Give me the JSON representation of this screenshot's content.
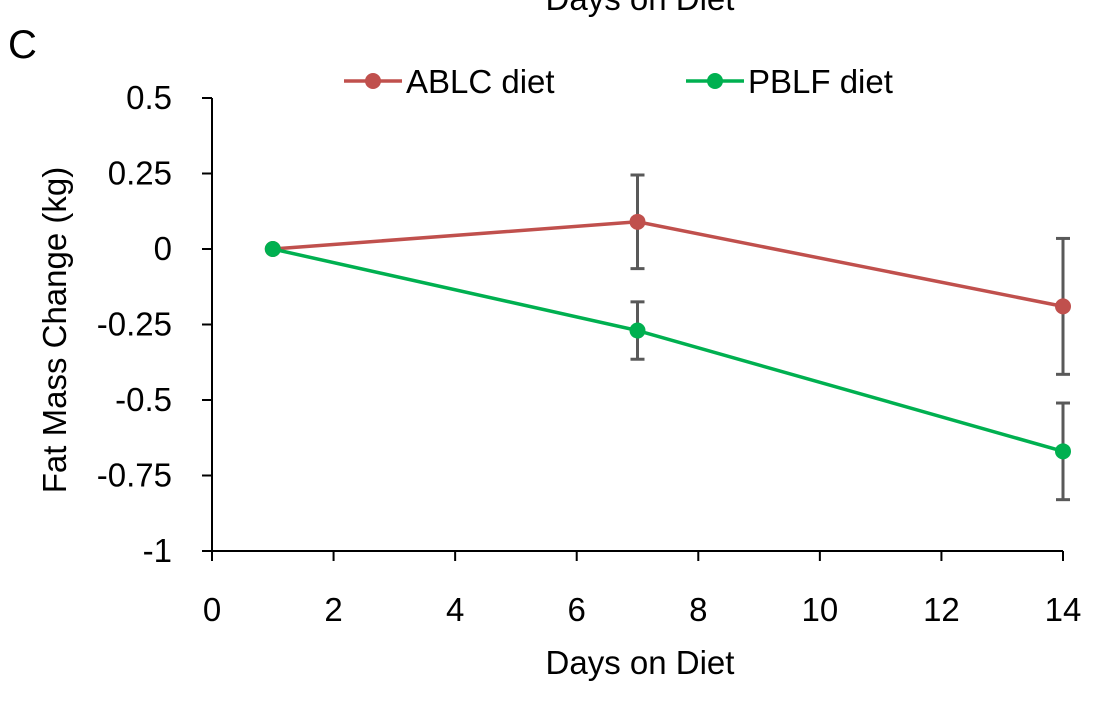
{
  "panel_label": "C",
  "top_cropped_text": "Days on Diet",
  "chart_data": {
    "type": "line",
    "xlabel": "Days on Diet",
    "ylabel": "Fat Mass Change (kg)",
    "xlim": [
      0,
      14
    ],
    "ylim": [
      -1,
      0.5
    ],
    "x_ticks": [
      0,
      2,
      4,
      6,
      8,
      10,
      12,
      14
    ],
    "y_ticks": [
      0.5,
      0.25,
      0,
      -0.25,
      -0.5,
      -0.75,
      -1
    ],
    "y_tick_labels": [
      "0.5",
      "0.25",
      "0",
      "-0.25",
      "-0.5",
      "-0.75",
      "-1"
    ],
    "x_tick_labels": [
      "0",
      "2",
      "4",
      "6",
      "8",
      "10",
      "12",
      "14"
    ],
    "grid": false,
    "legend_position": "top",
    "series": [
      {
        "name": "ABLC diet",
        "color": "#c0504d",
        "x": [
          1,
          7,
          14
        ],
        "y": [
          0,
          0.09,
          -0.19
        ],
        "error": [
          0,
          0.155,
          0.225
        ]
      },
      {
        "name": "PBLF diet",
        "color": "#00b050",
        "x": [
          1,
          7,
          14
        ],
        "y": [
          0,
          -0.27,
          -0.67
        ],
        "error": [
          0,
          0.095,
          0.16
        ]
      }
    ],
    "error_bar_color": "#595959"
  }
}
